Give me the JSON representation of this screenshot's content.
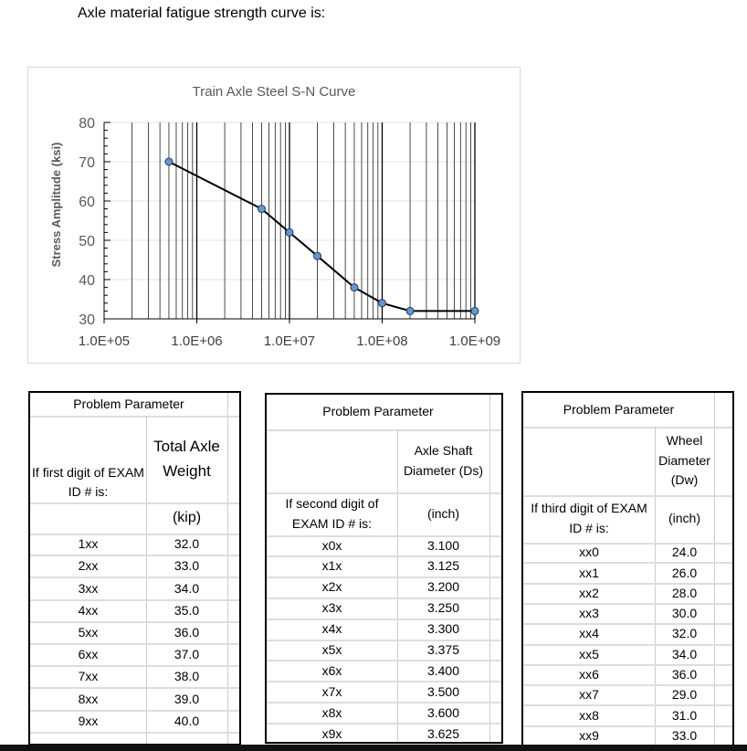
{
  "intro": "Axle material fatigue strength curve is:",
  "chart_data": {
    "type": "line",
    "title": "Train Axle Steel  S-N Curve",
    "xlabel": "",
    "ylabel": "Stress Amplitude (ksi)",
    "x_scale": "log",
    "xlim": [
      100000,
      1000000000
    ],
    "ylim": [
      30,
      80
    ],
    "x_tick_labels": [
      "1.0E+05",
      "1.0E+06",
      "1.0E+07",
      "1.0E+08",
      "1.0E+09"
    ],
    "y_tick_labels": [
      "30",
      "40",
      "50",
      "60",
      "70",
      "80"
    ],
    "grid": "vertical major and minor (log) lines, light horizontal major lines",
    "legend": "none",
    "line_color": "#000000",
    "marker_color": "#5b9bd5",
    "x": [
      500000,
      5000000,
      10000000,
      20000000,
      50000000,
      100000000,
      200000000,
      1000000000
    ],
    "y": [
      70,
      58,
      52,
      46,
      38,
      34,
      32,
      32
    ]
  },
  "tables": [
    {
      "title": "Problem Parameter",
      "row_label_header": "If first digit of EXAM ID # is:",
      "value_header": "Total Axle Weight",
      "unit": "(kip)",
      "rows": [
        [
          "1xx",
          "32.0"
        ],
        [
          "2xx",
          "33.0"
        ],
        [
          "3xx",
          "34.0"
        ],
        [
          "4xx",
          "35.0"
        ],
        [
          "5xx",
          "36.0"
        ],
        [
          "6xx",
          "37.0"
        ],
        [
          "7xx",
          "38.0"
        ],
        [
          "8xx",
          "39.0"
        ],
        [
          "9xx",
          "40.0"
        ]
      ]
    },
    {
      "title": "Problem Parameter",
      "row_label_header": "If second digit of EXAM ID # is:",
      "value_header": "Axle Shaft Diameter (Ds)",
      "unit": "(inch)",
      "rows": [
        [
          "x0x",
          "3.100"
        ],
        [
          "x1x",
          "3.125"
        ],
        [
          "x2x",
          "3.200"
        ],
        [
          "x3x",
          "3.250"
        ],
        [
          "x4x",
          "3.300"
        ],
        [
          "x5x",
          "3.375"
        ],
        [
          "x6x",
          "3.400"
        ],
        [
          "x7x",
          "3.500"
        ],
        [
          "x8x",
          "3.600"
        ],
        [
          "x9x",
          "3.625"
        ]
      ]
    },
    {
      "title": "Problem Parameter",
      "row_label_header": "If third digit of EXAM ID # is:",
      "value_header": "Wheel Diameter (Dw)",
      "unit": "(inch)",
      "rows": [
        [
          "xx0",
          "24.0"
        ],
        [
          "xx1",
          "26.0"
        ],
        [
          "xx2",
          "28.0"
        ],
        [
          "xx3",
          "30.0"
        ],
        [
          "xx4",
          "32.0"
        ],
        [
          "xx5",
          "34.0"
        ],
        [
          "xx6",
          "36.0"
        ],
        [
          "xx7",
          "29.0"
        ],
        [
          "xx8",
          "31.0"
        ],
        [
          "xx9",
          "33.0"
        ]
      ]
    }
  ]
}
